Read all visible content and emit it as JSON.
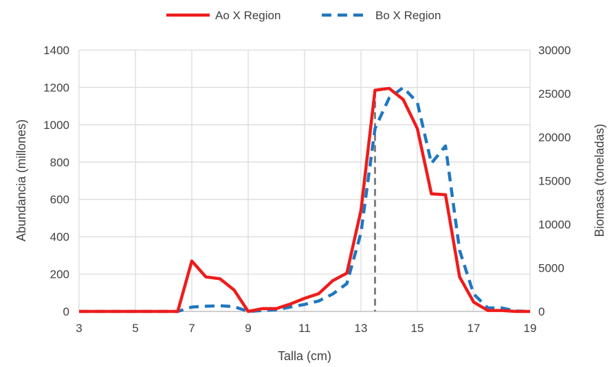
{
  "chart_data": {
    "type": "line",
    "title": "",
    "xlabel": "Talla (cm)",
    "ylabel_left": "Abundancia (millones)",
    "ylabel_right": "Biomasa (toneladas)",
    "xlim": [
      3,
      19
    ],
    "ylim_left": [
      0,
      1400
    ],
    "ylim_right": [
      0,
      30000
    ],
    "x_ticks": [
      3,
      5,
      7,
      9,
      11,
      13,
      15,
      17,
      19
    ],
    "y_ticks_left": [
      0,
      200,
      400,
      600,
      800,
      1000,
      1200,
      1400
    ],
    "y_ticks_right": [
      0,
      5000,
      10000,
      15000,
      20000,
      25000,
      30000
    ],
    "grid": true,
    "legend_position": "top",
    "colors": {
      "abundance": "#ee1c1c",
      "biomass": "#1f77c0",
      "marker": "#808080"
    },
    "series": [
      {
        "name": "Ao X Region",
        "axis": "left",
        "style": "solid",
        "x": [
          3,
          3.5,
          4,
          4.5,
          5,
          5.5,
          6,
          6.5,
          7,
          7.5,
          8,
          8.5,
          9,
          9.5,
          10,
          10.5,
          11,
          11.5,
          12,
          12.5,
          13,
          13.5,
          14,
          14.5,
          15,
          15.5,
          16,
          16.5,
          17,
          17.5,
          18,
          18.5,
          19
        ],
        "values": [
          0,
          0,
          0,
          0,
          0,
          0,
          0,
          0,
          270,
          185,
          175,
          115,
          0,
          15,
          15,
          40,
          70,
          95,
          165,
          205,
          540,
          1185,
          1195,
          1135,
          980,
          630,
          625,
          185,
          50,
          5,
          5,
          0,
          0
        ]
      },
      {
        "name": "Bo X Region",
        "axis": "right",
        "style": "dashed",
        "x": [
          3,
          3.5,
          4,
          4.5,
          5,
          5.5,
          6,
          6.5,
          7,
          7.5,
          8,
          8.5,
          9,
          9.5,
          10,
          10.5,
          11,
          11.5,
          12,
          12.5,
          13,
          13.5,
          14,
          14.5,
          15,
          15.5,
          16,
          16.5,
          17,
          17.5,
          18,
          18.5,
          19
        ],
        "values": [
          0,
          0,
          0,
          0,
          0,
          0,
          0,
          0,
          500,
          600,
          650,
          550,
          0,
          100,
          200,
          500,
          800,
          1200,
          2000,
          3200,
          9000,
          21000,
          24500,
          25700,
          24000,
          17000,
          19000,
          7000,
          2000,
          400,
          400,
          50,
          0
        ]
      }
    ],
    "marker_line": {
      "x": 13.5,
      "style": "dashed"
    }
  }
}
